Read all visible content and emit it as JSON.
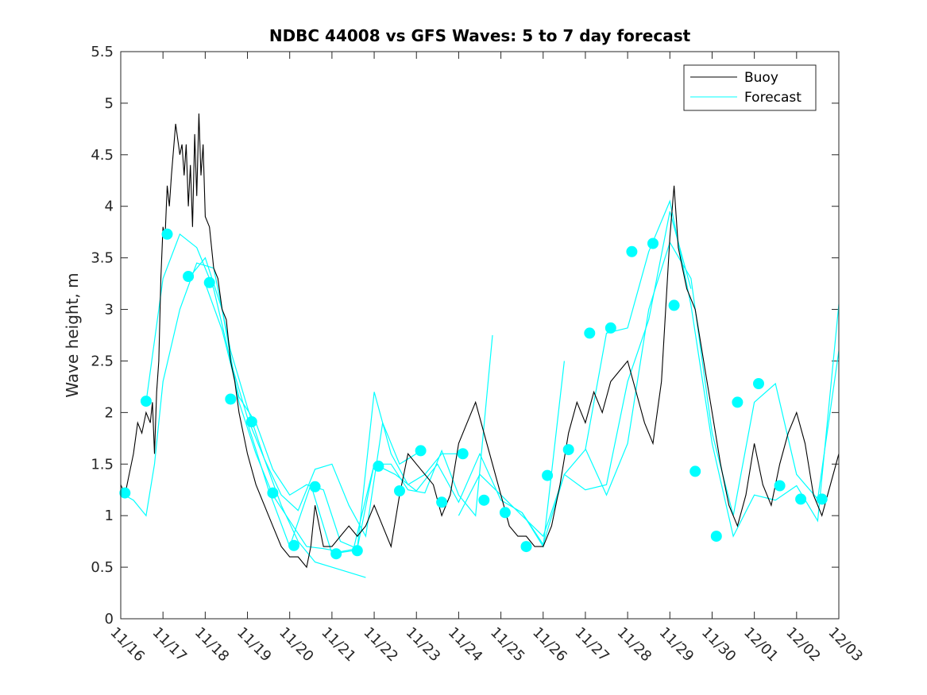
{
  "chart_data": {
    "type": "line",
    "title": "NDBC 44008 vs GFS Waves: 5 to 7 day forecast",
    "xlabel": "",
    "ylabel": "Wave height, m",
    "xlim": [
      0,
      17
    ],
    "ylim": [
      0,
      5.5
    ],
    "x_tick_values": [
      0,
      1,
      2,
      3,
      4,
      5,
      6,
      7,
      8,
      9,
      10,
      11,
      12,
      13,
      14,
      15,
      16,
      17
    ],
    "x_tick_labels": [
      "11/16",
      "11/17",
      "11/18",
      "11/19",
      "11/20",
      "11/21",
      "11/22",
      "11/23",
      "11/24",
      "11/25",
      "11/26",
      "11/27",
      "11/28",
      "11/29",
      "11/30",
      "12/01",
      "12/02",
      "12/03"
    ],
    "y_ticks": [
      0,
      0.5,
      1,
      1.5,
      2,
      2.5,
      3,
      3.5,
      4,
      4.5,
      5,
      5.5
    ],
    "y_tick_labels": [
      "0",
      "0.5",
      "1",
      "1.5",
      "2",
      "2.5",
      "3",
      "3.5",
      "4",
      "4.5",
      "5",
      "5.5"
    ],
    "legend": {
      "position": "top-right",
      "entries": [
        "Buoy",
        "Forecast"
      ]
    },
    "colors": {
      "buoy": "#000000",
      "forecast": "#00FFFF",
      "marker": "#00FFFF",
      "axis": "#262626"
    },
    "series": [
      {
        "name": "Buoy",
        "x": [
          0,
          0.1,
          0.2,
          0.3,
          0.4,
          0.5,
          0.6,
          0.7,
          0.75,
          0.8,
          0.85,
          0.9,
          0.95,
          1.0,
          1.05,
          1.1,
          1.15,
          1.2,
          1.3,
          1.4,
          1.45,
          1.5,
          1.55,
          1.6,
          1.65,
          1.7,
          1.75,
          1.8,
          1.85,
          1.9,
          1.95,
          2.0,
          2.1,
          2.2,
          2.3,
          2.4,
          2.5,
          2.6,
          2.7,
          2.8,
          2.9,
          3.0,
          3.2,
          3.4,
          3.6,
          3.8,
          4.0,
          4.2,
          4.4,
          4.5,
          4.6,
          4.8,
          5.0,
          5.2,
          5.4,
          5.6,
          5.8,
          6.0,
          6.2,
          6.4,
          6.6,
          6.8,
          7.0,
          7.2,
          7.4,
          7.6,
          7.8,
          8.0,
          8.2,
          8.4,
          8.6,
          8.8,
          9.0,
          9.2,
          9.4,
          9.6,
          9.8,
          10.0,
          10.2,
          10.4,
          10.6,
          10.8,
          11.0,
          11.2,
          11.4,
          11.6,
          11.8,
          12.0,
          12.2,
          12.4,
          12.6,
          12.8,
          12.9,
          13.0,
          13.1,
          13.2,
          13.3,
          13.4,
          13.6,
          13.8,
          14.0,
          14.2,
          14.4,
          14.6,
          14.8,
          15.0,
          15.2,
          15.4,
          15.6,
          15.8,
          16.0,
          16.2,
          16.4,
          16.6,
          16.8,
          17.0
        ],
        "values": [
          1.3,
          1.2,
          1.4,
          1.6,
          1.9,
          1.8,
          2.0,
          1.9,
          2.1,
          1.6,
          2.2,
          2.5,
          3.3,
          3.8,
          3.7,
          4.2,
          4.0,
          4.3,
          4.8,
          4.5,
          4.6,
          4.3,
          4.6,
          4.0,
          4.4,
          3.8,
          4.7,
          4.1,
          4.9,
          4.3,
          4.6,
          3.9,
          3.8,
          3.4,
          3.3,
          3.0,
          2.9,
          2.5,
          2.3,
          2.0,
          1.8,
          1.6,
          1.3,
          1.1,
          0.9,
          0.7,
          0.6,
          0.6,
          0.5,
          0.7,
          1.1,
          0.7,
          0.7,
          0.8,
          0.9,
          0.8,
          0.9,
          1.1,
          0.9,
          0.7,
          1.2,
          1.6,
          1.5,
          1.4,
          1.3,
          1.0,
          1.2,
          1.7,
          1.9,
          2.1,
          1.8,
          1.5,
          1.2,
          0.9,
          0.8,
          0.8,
          0.7,
          0.7,
          0.9,
          1.3,
          1.8,
          2.1,
          1.9,
          2.2,
          2.0,
          2.3,
          2.4,
          2.5,
          2.2,
          1.9,
          1.7,
          2.3,
          3.0,
          3.7,
          4.2,
          3.6,
          3.4,
          3.2,
          3.0,
          2.5,
          2.0,
          1.5,
          1.1,
          0.9,
          1.2,
          1.7,
          1.3,
          1.1,
          1.5,
          1.8,
          2.0,
          1.7,
          1.2,
          1.0,
          1.3,
          1.6
        ]
      },
      {
        "name": "Forecast",
        "runs": [
          {
            "x": [
              0.0,
              0.3,
              0.6,
              0.8,
              1.0,
              1.4,
              1.8,
              2.2,
              2.6,
              3.0,
              3.4,
              3.8,
              4.2,
              4.6,
              5.0,
              5.4,
              5.8
            ],
            "values": [
              1.22,
              1.15,
              1.0,
              1.5,
              2.3,
              3.0,
              3.45,
              3.4,
              2.6,
              2.05,
              1.55,
              1.1,
              0.75,
              0.55,
              0.5,
              0.45,
              0.4
            ]
          },
          {
            "x": [
              0.6,
              1.0,
              1.4,
              1.8,
              2.2,
              2.6,
              3.0,
              3.4,
              3.8,
              4.2,
              4.6,
              5.0,
              5.4,
              5.8,
              6.2,
              6.6,
              7.0
            ],
            "values": [
              2.1,
              3.3,
              3.73,
              3.6,
              3.2,
              2.5,
              1.95,
              1.55,
              1.2,
              1.05,
              1.45,
              1.5,
              1.1,
              0.8,
              1.9,
              1.5,
              1.6
            ]
          },
          {
            "x": [
              1.6,
              2.0,
              2.4,
              2.8,
              3.2,
              3.6,
              4.0,
              4.4,
              4.8,
              5.2,
              5.6,
              6.0,
              6.4,
              6.8,
              7.2,
              7.6,
              8.0
            ],
            "values": [
              3.3,
              3.5,
              3.0,
              2.1,
              1.6,
              1.2,
              0.95,
              0.7,
              0.68,
              0.65,
              0.68,
              2.2,
              1.6,
              1.3,
              1.4,
              1.6,
              1.6
            ]
          },
          {
            "x": [
              2.0,
              2.4,
              2.8,
              3.2,
              3.6,
              4.0,
              4.4,
              4.8,
              5.2,
              5.6,
              6.0,
              6.4,
              6.8,
              7.2,
              7.6,
              8.0,
              8.4,
              8.8
            ],
            "values": [
              3.25,
              2.8,
              2.15,
              1.9,
              1.45,
              1.2,
              1.3,
              1.25,
              0.75,
              0.68,
              1.5,
              1.5,
              1.25,
              1.22,
              1.63,
              1.2,
              1.0,
              2.75
            ]
          },
          {
            "x": [
              3.0,
              3.5,
              4.0,
              4.5,
              5.0,
              5.5,
              6.0,
              6.5,
              7.0,
              7.5,
              8.0,
              8.5,
              9.0,
              9.5,
              10.0,
              10.5
            ],
            "values": [
              1.9,
              1.25,
              0.7,
              1.3,
              0.63,
              0.66,
              1.5,
              1.4,
              1.24,
              1.5,
              1.13,
              1.6,
              1.15,
              1.03,
              0.7,
              2.5
            ]
          },
          {
            "x": [
              8.0,
              8.5,
              9.0,
              9.5,
              10.0,
              10.5,
              11.0,
              11.5,
              12.0,
              12.5,
              13.0,
              13.5
            ],
            "values": [
              1.0,
              1.4,
              1.2,
              1.0,
              0.8,
              1.4,
              1.25,
              1.3,
              2.3,
              2.9,
              3.95,
              3.2
            ]
          },
          {
            "x": [
              9.5,
              10.0,
              10.5,
              11.0,
              11.5,
              12.0,
              12.5,
              13.0,
              13.5,
              14.0,
              14.5,
              15.0,
              15.5,
              16.0,
              16.5,
              17.0
            ],
            "values": [
              1.03,
              0.72,
              1.4,
              1.64,
              2.77,
              2.82,
              3.56,
              4.05,
              3.04,
              1.7,
              0.8,
              1.2,
              1.15,
              1.29,
              0.95,
              3.05
            ]
          },
          {
            "x": [
              11.0,
              11.5,
              12.0,
              12.5,
              13.0,
              13.5,
              14.0,
              14.5,
              15.0,
              15.5,
              16.0,
              16.5,
              17.0
            ],
            "values": [
              1.65,
              1.2,
              1.7,
              3.0,
              3.65,
              3.3,
              1.8,
              1.0,
              2.1,
              2.28,
              1.4,
              1.16,
              2.6
            ]
          }
        ],
        "markers": {
          "x": [
            0.1,
            0.6,
            1.1,
            1.6,
            2.1,
            2.6,
            3.1,
            3.6,
            4.1,
            4.6,
            5.1,
            5.6,
            6.1,
            6.6,
            7.1,
            7.6,
            8.1,
            8.6,
            9.1,
            9.6,
            10.1,
            10.6,
            11.1,
            11.6,
            12.1,
            12.6,
            13.1,
            13.6,
            14.1,
            14.6,
            15.1,
            15.6,
            16.1,
            16.6
          ],
          "values": [
            1.22,
            2.11,
            3.73,
            3.32,
            3.26,
            2.13,
            1.91,
            1.22,
            0.71,
            1.28,
            0.63,
            0.66,
            1.48,
            1.24,
            1.63,
            1.13,
            1.6,
            1.15,
            1.03,
            0.7,
            1.39,
            1.64,
            2.77,
            2.82,
            3.56,
            3.64,
            3.04,
            1.43,
            0.8,
            2.1,
            2.28,
            1.29,
            1.16,
            1.16
          ]
        }
      }
    ]
  }
}
